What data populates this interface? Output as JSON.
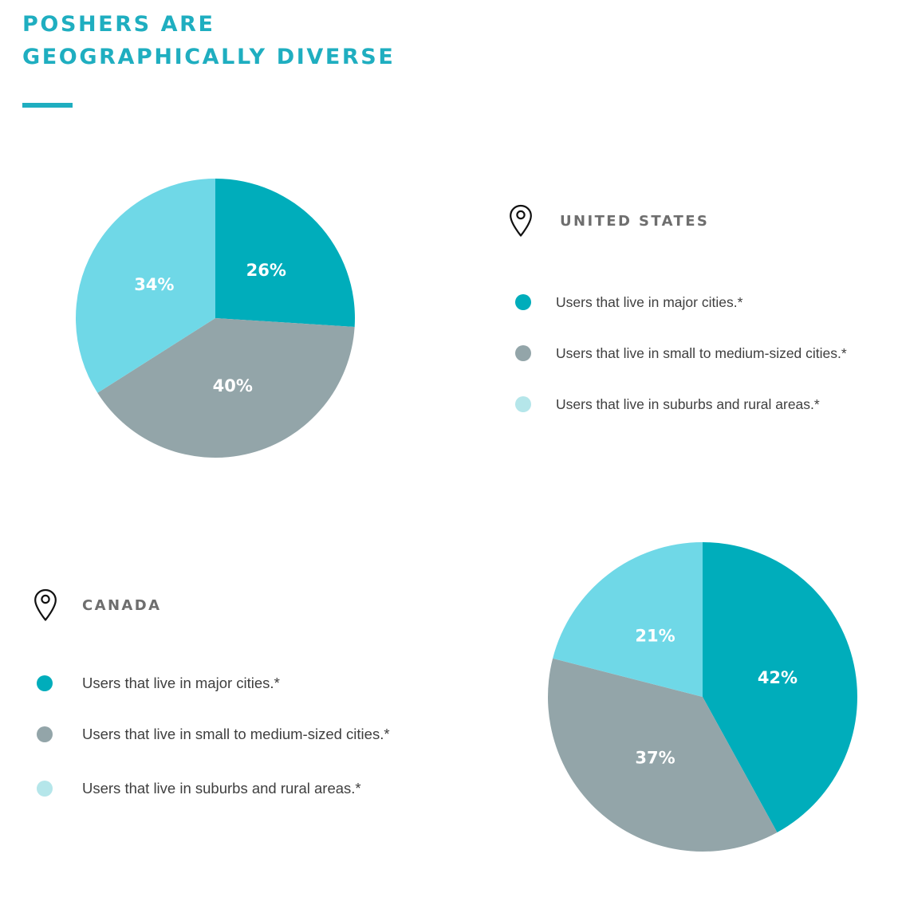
{
  "title": {
    "line1": "POSHERS ARE",
    "line2": "GEOGRAPHICALLY DIVERSE"
  },
  "colors": {
    "accent": "#1faec0",
    "major_cities": "#00adbb",
    "small_medium_cities": "#93a5a9",
    "suburbs_rural": "#6fd8e7",
    "suburbs_rural_legend": "#b5e6ea"
  },
  "legend_labels": [
    "Users that live in major cities.*",
    "Users that live in small to medium-sized cities.*",
    "Users that live in suburbs and rural areas.*"
  ],
  "regions": {
    "us": {
      "name": "UNITED STATES",
      "icon": "map-pin-icon"
    },
    "ca": {
      "name": "CANADA",
      "icon": "map-pin-icon"
    }
  },
  "chart_data": [
    {
      "type": "pie",
      "region": "UNITED STATES",
      "start_angle_deg": 0,
      "direction": "clockwise",
      "slices": [
        {
          "label": "Users that live in major cities.*",
          "value": 26,
          "display": "26%",
          "color": "#00adbb"
        },
        {
          "label": "Users that live in small to medium-sized cities.*",
          "value": 40,
          "display": "40%",
          "color": "#93a5a9"
        },
        {
          "label": "Users that live in suburbs and rural areas.*",
          "value": 34,
          "display": "34%",
          "color": "#6fd8e7"
        }
      ]
    },
    {
      "type": "pie",
      "region": "CANADA",
      "start_angle_deg": 0,
      "direction": "clockwise",
      "slices": [
        {
          "label": "Users that live in major cities.*",
          "value": 42,
          "display": "42%",
          "color": "#00adbb"
        },
        {
          "label": "Users that live in small to medium-sized cities.*",
          "value": 37,
          "display": "37%",
          "color": "#93a5a9"
        },
        {
          "label": "Users that live in suburbs and rural areas.*",
          "value": 21,
          "display": "21%",
          "color": "#6fd8e7"
        }
      ]
    }
  ]
}
